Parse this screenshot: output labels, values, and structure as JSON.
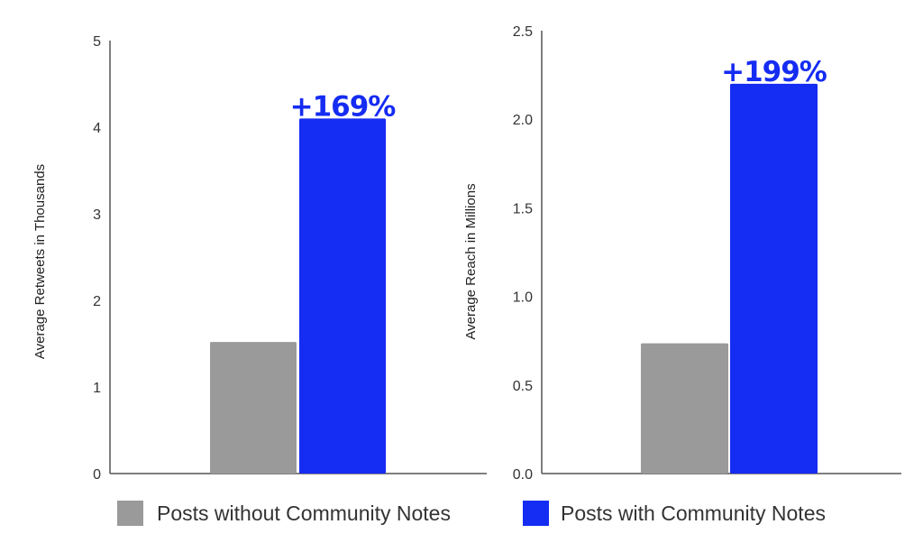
{
  "chart_data": [
    {
      "type": "bar",
      "title": "",
      "xlabel": "",
      "ylabel": "Average Retweets in Thousands",
      "ylim": [
        0,
        5
      ],
      "yticks": [
        "0",
        "1",
        "2",
        "3",
        "4",
        "5"
      ],
      "grid": false,
      "series": [
        {
          "name": "Posts without Community Notes",
          "values": [
            1.52
          ]
        },
        {
          "name": "Posts with Community Notes",
          "values": [
            4.1
          ]
        }
      ],
      "annotation": "+169%"
    },
    {
      "type": "bar",
      "title": "",
      "xlabel": "",
      "ylabel": "Average Reach in Millions",
      "ylim": [
        0,
        2.5
      ],
      "yticks": [
        "0.0",
        "0.5",
        "1.0",
        "1.5",
        "2.0",
        "2.5"
      ],
      "grid": false,
      "series": [
        {
          "name": "Posts without Community Notes",
          "values": [
            0.735
          ]
        },
        {
          "name": "Posts with Community Notes",
          "values": [
            2.2
          ]
        }
      ],
      "annotation": "+199%"
    }
  ],
  "legend": {
    "placement": "bottom",
    "items": [
      {
        "label": "Posts without Community Notes",
        "color": "#9a9a9a"
      },
      {
        "label": "Posts with Community Notes",
        "color": "#152cf2"
      }
    ]
  },
  "colors": {
    "without": "#9a9a9a",
    "with": "#152cf2",
    "axis": "#555555"
  }
}
